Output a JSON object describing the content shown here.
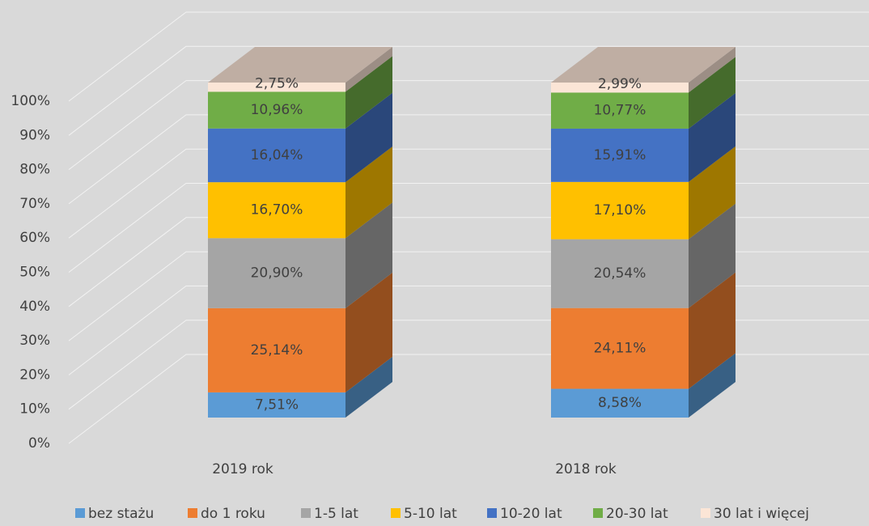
{
  "chart_data": {
    "type": "bar",
    "stacked": true,
    "categories": [
      "2019 rok",
      "2018 rok"
    ],
    "series": [
      {
        "name": "bez stażu",
        "color": "#5b9bd5",
        "values": [
          7.51,
          8.58
        ],
        "value_labels": [
          "7,51%",
          "8,58%"
        ]
      },
      {
        "name": "do 1 roku",
        "color": "#ed7d31",
        "values": [
          25.14,
          24.11
        ],
        "value_labels": [
          "25,14%",
          "24,11%"
        ]
      },
      {
        "name": "1-5 lat",
        "color": "#a5a5a5",
        "values": [
          20.9,
          20.54
        ],
        "value_labels": [
          "20,90%",
          "20,54%"
        ]
      },
      {
        "name": "5-10 lat",
        "color": "#ffc000",
        "values": [
          16.7,
          17.1
        ],
        "value_labels": [
          "16,70%",
          "17,10%"
        ]
      },
      {
        "name": "10-20 lat",
        "color": "#4472c4",
        "values": [
          16.04,
          15.91
        ],
        "value_labels": [
          "16,04%",
          "15,91%"
        ]
      },
      {
        "name": "20-30 lat",
        "color": "#70ad47",
        "values": [
          10.96,
          10.77
        ],
        "value_labels": [
          "10,96%",
          "10,77%"
        ]
      },
      {
        "name": "30 lat i więcej",
        "color": "#fbe5d6",
        "values": [
          2.75,
          2.99
        ],
        "value_labels": [
          "2,75%",
          "2,99%"
        ]
      }
    ],
    "ylim": [
      0,
      100
    ],
    "yticks": [
      {
        "value": 0,
        "label": "0%"
      },
      {
        "value": 10,
        "label": "10%"
      },
      {
        "value": 20,
        "label": "20%"
      },
      {
        "value": 30,
        "label": "30%"
      },
      {
        "value": 40,
        "label": "40%"
      },
      {
        "value": 50,
        "label": "50%"
      },
      {
        "value": 60,
        "label": "60%"
      },
      {
        "value": 70,
        "label": "70%"
      },
      {
        "value": 80,
        "label": "80%"
      },
      {
        "value": 90,
        "label": "90%"
      },
      {
        "value": 100,
        "label": "100%"
      }
    ],
    "grid": true,
    "legend": "bottom"
  }
}
